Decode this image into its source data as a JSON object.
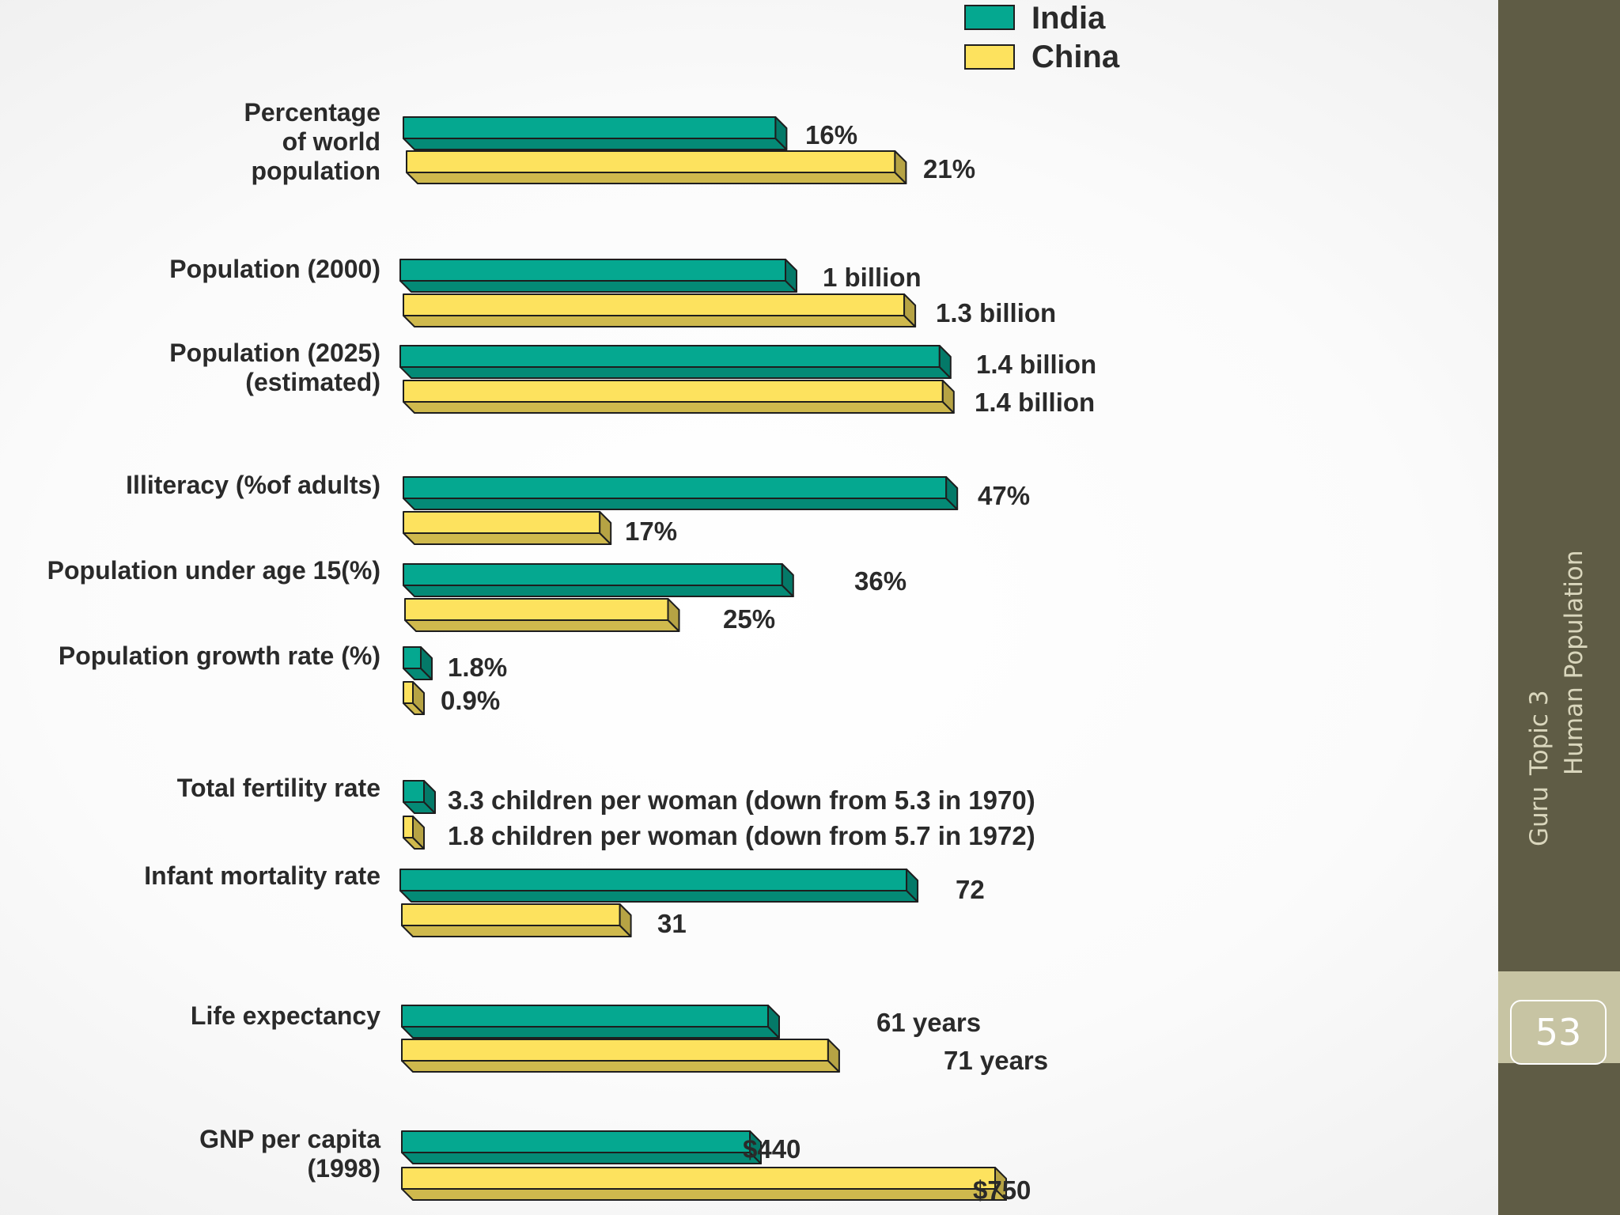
{
  "chart_data": {
    "type": "bar",
    "orientation": "horizontal",
    "style": "3d",
    "legend": {
      "placement": "top",
      "entries": [
        {
          "name": "India",
          "color": "#05a890"
        },
        {
          "name": "China",
          "color": "#fde25e"
        }
      ]
    },
    "categories": [
      "Percentage\nof world\npopulation",
      "Population (2000)",
      "Population (2025)\n(estimated)",
      "Illiteracy (%of adults)",
      "Population under age 15(%)",
      "Population growth rate (%)",
      "Total fertility rate",
      "Infant mortality rate",
      "Life expectancy",
      "GNP per capita\n(1998)"
    ],
    "series": [
      {
        "name": "India",
        "values": [
          16,
          1,
          1.4,
          47,
          36,
          1.8,
          3.3,
          72,
          61,
          440
        ],
        "labels": [
          "16%",
          "1 billion",
          "1.4 billion",
          "47%",
          "36%",
          "1.8%",
          "3.3 children per woman (down from 5.3 in 1970)",
          "72",
          "61 years",
          "$440"
        ]
      },
      {
        "name": "China",
        "values": [
          21,
          1.3,
          1.4,
          17,
          25,
          0.9,
          1.8,
          31,
          71,
          750
        ],
        "labels": [
          "21%",
          "1.3 billion",
          "1.4 billion",
          "17%",
          "25%",
          "0.9%",
          "1.8 children per woman (down from 5.7 in 1972)",
          "31",
          "71 years",
          "$750"
        ]
      }
    ]
  },
  "side_panel": {
    "topic": "Topic 3",
    "title": "Human Population",
    "guru": "Guru",
    "page_number": "53"
  }
}
